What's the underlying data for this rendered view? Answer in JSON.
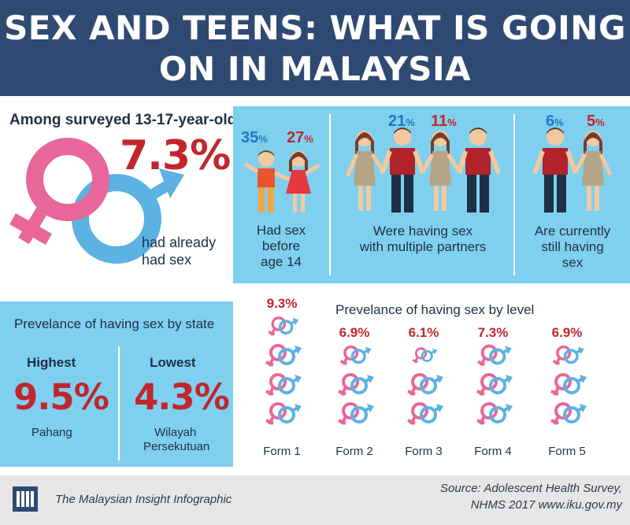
{
  "header": {
    "title_line1": "SEX AND TEENS: WHAT IS GOING",
    "title_line2": "ON IN MALAYSIA"
  },
  "survey": {
    "intro": "Among surveyed 13-17-year-olds",
    "headline_pct": "7.3%",
    "headline_caption_1": "had already",
    "headline_caption_2": "had sex"
  },
  "stats": {
    "before14": {
      "male": "35",
      "female": "27",
      "caption": [
        "Had sex",
        "before",
        "age 14"
      ]
    },
    "multiple": {
      "male": "21",
      "female": "11",
      "caption": [
        "Were having sex",
        "with multiple partners"
      ]
    },
    "current": {
      "male": "6",
      "female": "5",
      "caption": [
        "Are currently",
        "still having",
        "sex"
      ]
    },
    "pct_sign": "%"
  },
  "state": {
    "title": "Prevelance of having sex by state",
    "highest_label": "Highest",
    "highest_value": "9.5%",
    "highest_state": "Pahang",
    "lowest_label": "Lowest",
    "lowest_value": "4.3%",
    "lowest_state_1": "Wilayah",
    "lowest_state_2": "Persekutuan"
  },
  "level": {
    "title": "Prevelance of having sex by level",
    "forms": [
      {
        "label": "Form 1",
        "value": "9.3%",
        "pct": 9.3
      },
      {
        "label": "Form 2",
        "value": "6.9%",
        "pct": 6.9
      },
      {
        "label": "Form 3",
        "value": "6.1%",
        "pct": 6.1
      },
      {
        "label": "Form 4",
        "value": "7.3%",
        "pct": 7.3
      },
      {
        "label": "Form 5",
        "value": "6.9%",
        "pct": 6.9
      }
    ]
  },
  "footer": {
    "brand": "The Malaysian Insight Infographic",
    "source_1": "Source: Adolescent Health Survey,",
    "source_2": "NHMS 2017 www.iku.gov.my"
  },
  "colors": {
    "navy": "#2f4a72",
    "panel": "#7fd0ee",
    "red": "#c0272d",
    "blue": "#1f78c1",
    "pink": "#e8669a",
    "lightblue": "#5bb2e3"
  }
}
